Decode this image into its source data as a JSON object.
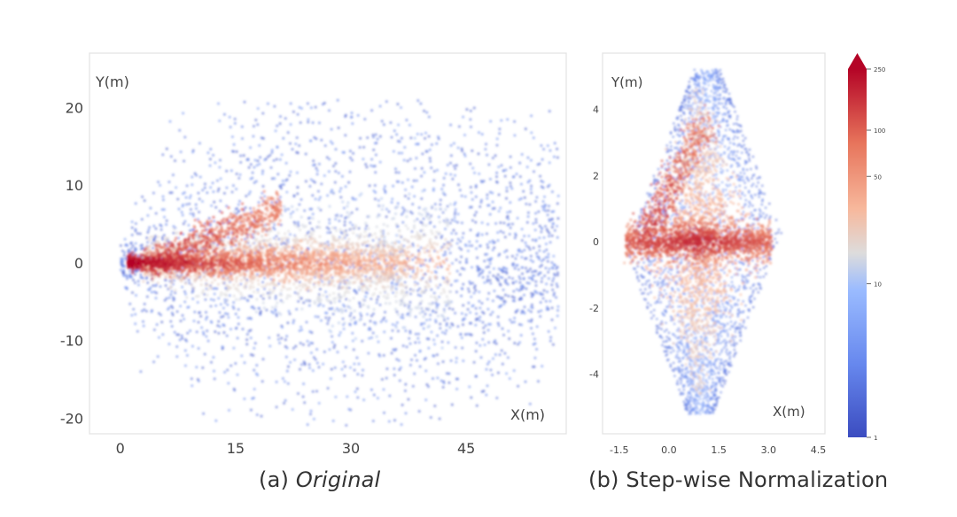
{
  "chart_data": [
    {
      "type": "heatmap",
      "subtype": "density-scatter",
      "caption_prefix": "(a)",
      "caption_text": "Original",
      "xlabel": "X(m)",
      "ylabel": "Y(m)",
      "x_ticks": [
        "0",
        "15",
        "30",
        "45"
      ],
      "y_ticks": [
        "20",
        "10",
        "0",
        "-10",
        "-20"
      ],
      "xlim": [
        -4,
        58
      ],
      "ylim": [
        -22,
        27
      ],
      "grid": false,
      "colormap": "coolwarm",
      "density_structure": "fan opening rightward from origin; dense red core along y=0 up to x≈35; upper branch toward (20,7); sparse blue envelope up to |y|≈20"
    },
    {
      "type": "heatmap",
      "subtype": "density-scatter",
      "caption_prefix": "(b)",
      "caption_text": "Step-wise Normalization",
      "xlabel": "X(m)",
      "ylabel": "Y(m)",
      "x_ticks": [
        "-1.5",
        "0.0",
        "1.5",
        "3.0",
        "4.5"
      ],
      "y_ticks": [
        "4",
        "2",
        "0",
        "-2",
        "-4"
      ],
      "xlim": [
        -2.0,
        4.7
      ],
      "ylim": [
        -5.8,
        5.7
      ],
      "grid": false,
      "colormap": "coolwarm",
      "density_structure": "diamond/kite shape centered near (1,0); dense red core along y=0; upper branch toward (1,3.5); blue envelope to |y|≈5"
    }
  ],
  "colorbar": {
    "ticks": [
      "250",
      "100",
      "50",
      "10",
      "1"
    ],
    "colormap": "coolwarm",
    "scale": "log",
    "extend": "max"
  }
}
